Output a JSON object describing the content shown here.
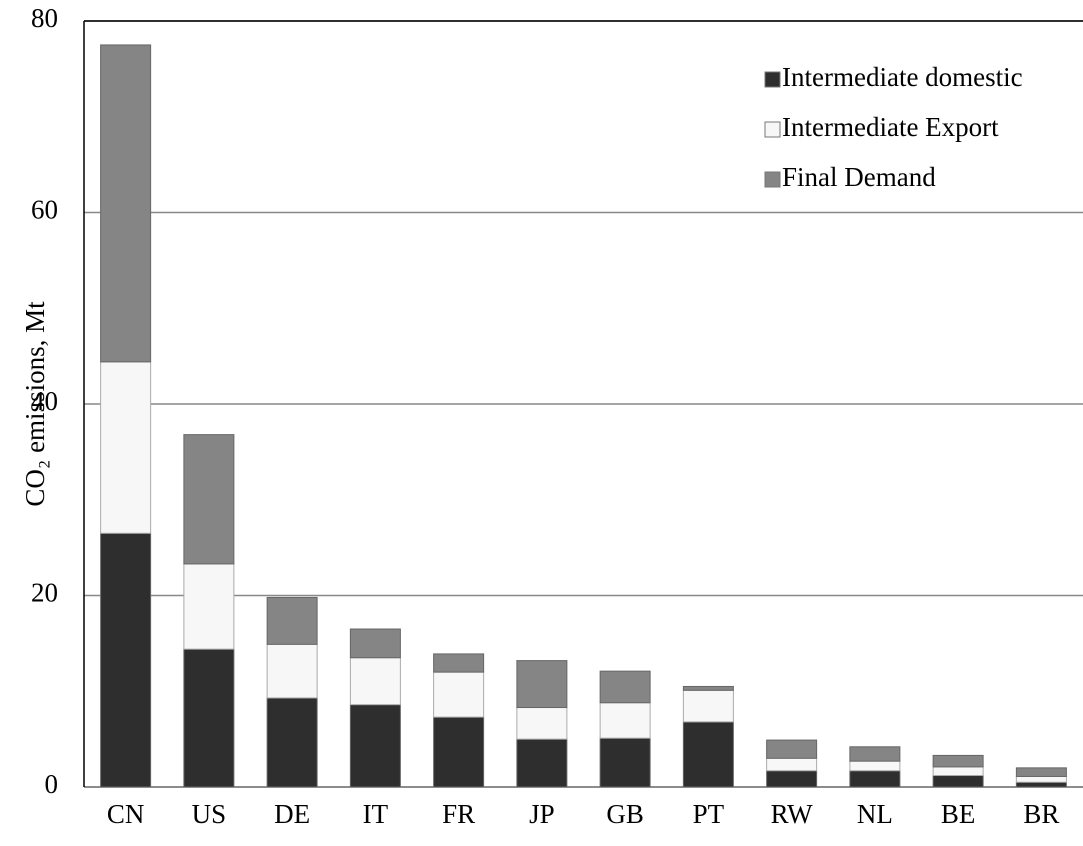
{
  "chart_data": {
    "type": "stacked_bar",
    "ylabel": "CO₂ emissions, Mt",
    "categories": [
      "CN",
      "US",
      "DE",
      "IT",
      "FR",
      "JP",
      "GB",
      "PT",
      "RW",
      "NL",
      "BE",
      "BR"
    ],
    "series": [
      {
        "name": "Intermediate domestic",
        "color": "#2e2e2e",
        "values": [
          26.5,
          14.4,
          9.3,
          8.6,
          7.3,
          5.0,
          5.1,
          6.8,
          1.7,
          1.7,
          1.2,
          0.5
        ]
      },
      {
        "name": "Intermediate Export",
        "color": "#f7f7f7",
        "values": [
          17.9,
          8.9,
          5.6,
          4.9,
          4.7,
          3.3,
          3.7,
          3.3,
          1.3,
          1.0,
          0.9,
          0.6
        ]
      },
      {
        "name": "Final Demand",
        "color": "#858585",
        "values": [
          33.1,
          13.5,
          4.9,
          3.0,
          1.9,
          4.9,
          3.3,
          0.4,
          1.9,
          1.5,
          1.2,
          0.9
        ]
      }
    ],
    "ylim": [
      0,
      80
    ],
    "yticks": [
      0,
      20,
      40,
      60,
      80
    ],
    "grid": true,
    "legend": "top-right"
  }
}
